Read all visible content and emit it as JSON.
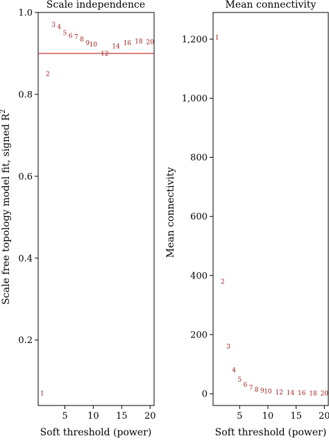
{
  "chart_data": [
    {
      "type": "scatter",
      "title": "Scale independence",
      "xlabel": "Soft threshold (power)",
      "ylabel": "Scale free topology model fit, signed R",
      "ylabel_superscript": "2",
      "xlim": [
        0.3,
        20.7
      ],
      "ylim": [
        0.04,
        1.0
      ],
      "xticks": [
        5,
        10,
        15,
        20
      ],
      "yticks": [
        0.2,
        0.4,
        0.6,
        0.8,
        1.0
      ],
      "ytick_labels": [
        "0.2",
        "0.4",
        "0.6",
        "0.8",
        "1.0"
      ],
      "hline": 0.9,
      "hline_color": "#b22222",
      "point_color": "#a01a1a",
      "marker": "text labels (power value)",
      "points": [
        {
          "label": "1",
          "x": 1,
          "y": 0.07
        },
        {
          "label": "2",
          "x": 2,
          "y": 0.85
        },
        {
          "label": "3",
          "x": 3,
          "y": 0.97
        },
        {
          "label": "4",
          "x": 4,
          "y": 0.965
        },
        {
          "label": "5",
          "x": 5,
          "y": 0.95
        },
        {
          "label": "6",
          "x": 6,
          "y": 0.943
        },
        {
          "label": "7",
          "x": 7,
          "y": 0.941
        },
        {
          "label": "8",
          "x": 8,
          "y": 0.935
        },
        {
          "label": "9",
          "x": 9,
          "y": 0.925
        },
        {
          "label": "10",
          "x": 10,
          "y": 0.922
        },
        {
          "label": "12",
          "x": 12,
          "y": 0.9
        },
        {
          "label": "14",
          "x": 14,
          "y": 0.918
        },
        {
          "label": "16",
          "x": 16,
          "y": 0.925
        },
        {
          "label": "18",
          "x": 18,
          "y": 0.93
        },
        {
          "label": "20",
          "x": 20,
          "y": 0.928
        }
      ]
    },
    {
      "type": "scatter",
      "title": "Mean connectivity",
      "xlabel": "Soft threshold (power)",
      "ylabel": "Mean connectivity",
      "xlim": [
        0.3,
        20.7
      ],
      "ylim": [
        -40,
        1290
      ],
      "xticks": [
        5,
        10,
        15,
        20
      ],
      "yticks": [
        0,
        200,
        400,
        600,
        800,
        1000,
        1200
      ],
      "ytick_labels": [
        "0",
        "200",
        "400",
        "600",
        "800",
        "1,000",
        "1,200"
      ],
      "point_color": "#a01a1a",
      "marker": "text labels (power value)",
      "points": [
        {
          "label": "1",
          "x": 1,
          "y": 1205
        },
        {
          "label": "2",
          "x": 2,
          "y": 380
        },
        {
          "label": "3",
          "x": 3,
          "y": 160
        },
        {
          "label": "4",
          "x": 4,
          "y": 80
        },
        {
          "label": "5",
          "x": 5,
          "y": 48
        },
        {
          "label": "6",
          "x": 6,
          "y": 30
        },
        {
          "label": "7",
          "x": 7,
          "y": 20
        },
        {
          "label": "8",
          "x": 8,
          "y": 14
        },
        {
          "label": "9",
          "x": 9,
          "y": 10
        },
        {
          "label": "10",
          "x": 10,
          "y": 8
        },
        {
          "label": "12",
          "x": 12,
          "y": 5
        },
        {
          "label": "14",
          "x": 14,
          "y": 3
        },
        {
          "label": "16",
          "x": 16,
          "y": 2
        },
        {
          "label": "18",
          "x": 18,
          "y": 1
        },
        {
          "label": "20",
          "x": 20,
          "y": 1
        }
      ]
    }
  ]
}
